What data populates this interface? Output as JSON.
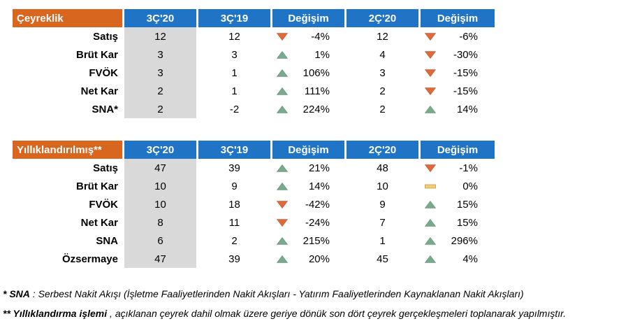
{
  "table_quarterly": {
    "headers": [
      "Çeyreklik",
      "3Ç'20",
      "3Ç'19",
      "Değişim",
      "2Ç'20",
      "Değişim"
    ],
    "rows": [
      {
        "label": "Satış",
        "q3_20": "12",
        "q3_19": "12",
        "chg_yoy": "-4%",
        "dir_yoy": "down",
        "q2_20": "12",
        "chg_qoq": "-6%",
        "dir_qoq": "down"
      },
      {
        "label": "Brüt Kar",
        "q3_20": "3",
        "q3_19": "3",
        "chg_yoy": "1%",
        "dir_yoy": "up",
        "q2_20": "4",
        "chg_qoq": "-30%",
        "dir_qoq": "down"
      },
      {
        "label": "FVÖK",
        "q3_20": "3",
        "q3_19": "1",
        "chg_yoy": "106%",
        "dir_yoy": "up",
        "q2_20": "3",
        "chg_qoq": "-15%",
        "dir_qoq": "down"
      },
      {
        "label": "Net Kar",
        "q3_20": "2",
        "q3_19": "1",
        "chg_yoy": "111%",
        "dir_yoy": "up",
        "q2_20": "2",
        "chg_qoq": "-15%",
        "dir_qoq": "down"
      },
      {
        "label": "SNA*",
        "q3_20": "2",
        "q3_19": "-2",
        "chg_yoy": "224%",
        "dir_yoy": "up",
        "q2_20": "2",
        "chg_qoq": "14%",
        "dir_qoq": "up"
      }
    ]
  },
  "table_annualized": {
    "headers": [
      "Yıllıklandırılmış**",
      "3Ç'20",
      "3Ç'19",
      "Değişim",
      "2Ç'20",
      "Değişim"
    ],
    "rows": [
      {
        "label": "Satış",
        "q3_20": "47",
        "q3_19": "39",
        "chg_yoy": "21%",
        "dir_yoy": "up",
        "q2_20": "48",
        "chg_qoq": "-1%",
        "dir_qoq": "down"
      },
      {
        "label": "Brüt Kar",
        "q3_20": "10",
        "q3_19": "9",
        "chg_yoy": "14%",
        "dir_yoy": "up",
        "q2_20": "10",
        "chg_qoq": "0%",
        "dir_qoq": "flat"
      },
      {
        "label": "FVÖK",
        "q3_20": "10",
        "q3_19": "18",
        "chg_yoy": "-42%",
        "dir_yoy": "down",
        "q2_20": "9",
        "chg_qoq": "15%",
        "dir_qoq": "up"
      },
      {
        "label": "Net Kar",
        "q3_20": "8",
        "q3_19": "11",
        "chg_yoy": "-24%",
        "dir_yoy": "down",
        "q2_20": "7",
        "chg_qoq": "15%",
        "dir_qoq": "up"
      },
      {
        "label": "SNA",
        "q3_20": "6",
        "q3_19": "2",
        "chg_yoy": "215%",
        "dir_yoy": "up",
        "q2_20": "1",
        "chg_qoq": "296%",
        "dir_qoq": "up"
      },
      {
        "label": "Özsermaye",
        "q3_20": "47",
        "q3_19": "39",
        "chg_yoy": "20%",
        "dir_yoy": "up",
        "q2_20": "45",
        "chg_qoq": "4%",
        "dir_qoq": "up"
      }
    ]
  },
  "notes": {
    "note1_term": "* SNA",
    "note1_text": " : Serbest Nakit Akışı (İşletme Faaliyetlerinden Nakit Akışları - Yatırım Faaliyetlerinden Kaynaklanan Nakit Akışları)",
    "note2_term": "** Yıllıklandırma işlemi",
    "note2_text": " , açıklanan çeyrek dahil olmak üzere geriye dönük son dört çeyrek gerçekleşmeleri toplanarak yapılmıştır."
  },
  "icons": {
    "up": "up-triangle-icon",
    "down": "down-triangle-icon",
    "flat": "flat-bar-icon"
  },
  "colors": {
    "label_header": "#d9661f",
    "column_header": "#1f74c6",
    "current_column": "#d9d9d9",
    "up": "#79aa8c",
    "down": "#de6a3a",
    "flat": "#f2cd79"
  }
}
